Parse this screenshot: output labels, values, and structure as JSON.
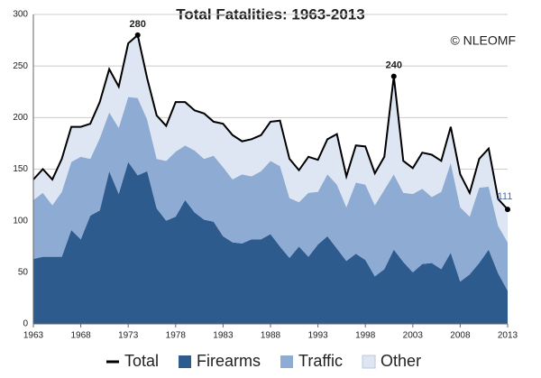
{
  "chart_data": {
    "type": "stacked_area",
    "title": "Total Fatalities: 1963-2013",
    "credit": "© NLEOMF",
    "x": [
      1963,
      1964,
      1965,
      1966,
      1967,
      1968,
      1969,
      1970,
      1971,
      1972,
      1973,
      1974,
      1975,
      1976,
      1977,
      1978,
      1979,
      1980,
      1981,
      1982,
      1983,
      1984,
      1985,
      1986,
      1987,
      1988,
      1989,
      1990,
      1991,
      1992,
      1993,
      1994,
      1995,
      1996,
      1997,
      1998,
      1999,
      2000,
      2001,
      2002,
      2003,
      2004,
      2005,
      2006,
      2007,
      2008,
      2009,
      2010,
      2011,
      2012,
      2013
    ],
    "series": [
      {
        "name": "Firearms",
        "color": "#2e5b8e",
        "values": [
          63,
          65,
          65,
          65,
          91,
          82,
          105,
          110,
          148,
          126,
          157,
          144,
          148,
          112,
          100,
          104,
          120,
          108,
          101,
          99,
          85,
          79,
          78,
          82,
          82,
          87,
          75,
          64,
          75,
          65,
          77,
          85,
          73,
          61,
          68,
          62,
          46,
          53,
          72,
          60,
          50,
          58,
          59,
          53,
          69,
          41,
          48,
          59,
          72,
          49,
          32
        ]
      },
      {
        "name": "Traffic",
        "color": "#8eabd4",
        "values": [
          57,
          62,
          50,
          63,
          66,
          80,
          55,
          70,
          57,
          64,
          63,
          75,
          50,
          48,
          58,
          63,
          53,
          60,
          59,
          64,
          67,
          61,
          67,
          61,
          66,
          71,
          78,
          58,
          43,
          62,
          51,
          60,
          62,
          52,
          69,
          73,
          69,
          77,
          73,
          67,
          76,
          73,
          64,
          75,
          87,
          72,
          56,
          73,
          61,
          46,
          47
        ]
      },
      {
        "name": "Other",
        "color": "#dde6f2",
        "values": [
          20,
          23,
          25,
          32,
          34,
          29,
          34,
          35,
          42,
          40,
          52,
          61,
          40,
          42,
          34,
          48,
          42,
          39,
          44,
          33,
          42,
          43,
          32,
          36,
          35,
          38,
          44,
          38,
          31,
          35,
          31,
          34,
          49,
          30,
          36,
          37,
          31,
          32,
          95,
          31,
          25,
          35,
          41,
          30,
          35,
          32,
          23,
          28,
          37,
          26,
          32
        ]
      },
      {
        "name": "Total",
        "color": "#000000",
        "line": true,
        "values": [
          140,
          150,
          140,
          160,
          191,
          191,
          194,
          215,
          247,
          230,
          272,
          280,
          238,
          202,
          192,
          215,
          215,
          207,
          204,
          196,
          194,
          183,
          177,
          179,
          183,
          196,
          197,
          160,
          149,
          162,
          159,
          179,
          184,
          143,
          173,
          172,
          146,
          162,
          240,
          158,
          151,
          166,
          164,
          158,
          191,
          145,
          127,
          160,
          170,
          121,
          111
        ],
        "value_labels": [
          null,
          null,
          null,
          null,
          null,
          null,
          null,
          null,
          null,
          null,
          null,
          "280",
          null,
          null,
          null,
          null,
          null,
          null,
          null,
          null,
          null,
          null,
          null,
          null,
          null,
          null,
          null,
          null,
          null,
          null,
          null,
          null,
          null,
          null,
          null,
          null,
          null,
          null,
          "240",
          null,
          null,
          null,
          null,
          null,
          null,
          null,
          null,
          null,
          null,
          null,
          "111"
        ]
      }
    ],
    "xlim": [
      1963,
      2013
    ],
    "xticks": [
      1963,
      1968,
      1973,
      1978,
      1983,
      1988,
      1993,
      1998,
      2003,
      2008,
      2013
    ],
    "ylim": [
      0,
      300
    ],
    "yticks": [
      0,
      50,
      100,
      150,
      200,
      250,
      300
    ],
    "grid": true
  }
}
